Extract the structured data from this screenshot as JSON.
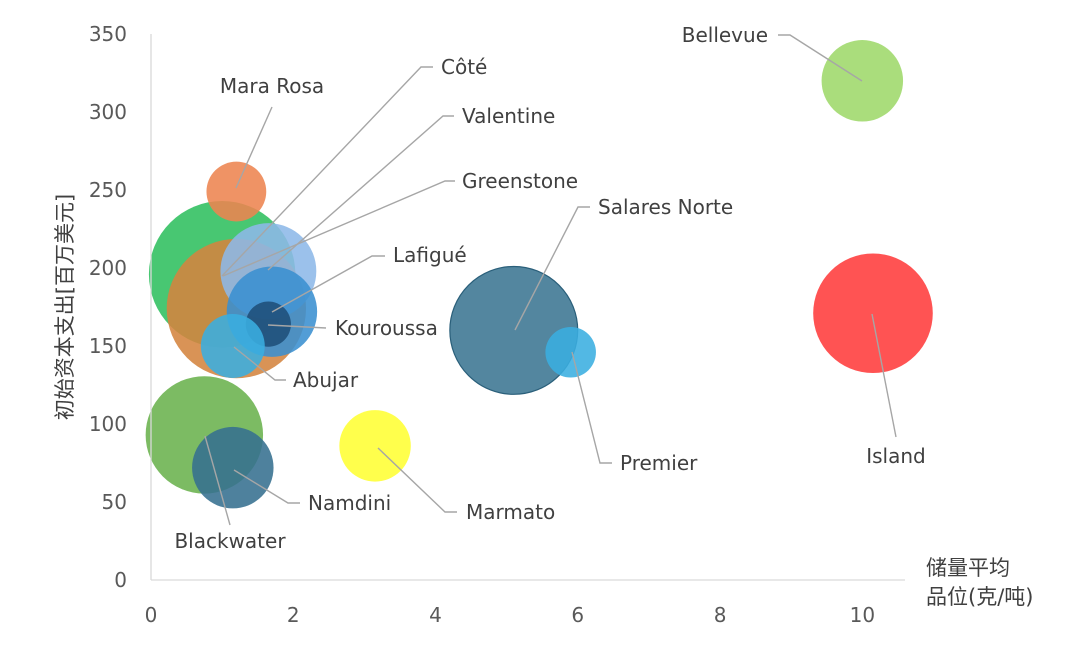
{
  "chart_data": {
    "type": "bubble",
    "xlabel_lines": [
      "储量平均",
      "品位(克/吨)"
    ],
    "ylabel": "初始资本支出[百万美元]",
    "xlim": [
      0,
      10.6
    ],
    "ylim": [
      0,
      350
    ],
    "xticks": [
      "0",
      "2",
      "4",
      "6",
      "8",
      "10"
    ],
    "yticks": [
      "0",
      "50",
      "100",
      "150",
      "200",
      "250",
      "300",
      "350"
    ],
    "series": [
      {
        "name": "Greenstone",
        "x": 1.0,
        "y": 196,
        "size": 42,
        "color": "#2fbf5f"
      },
      {
        "name": "Côté",
        "x": 1.2,
        "y": 174,
        "size": 38,
        "color": "#d4843f"
      },
      {
        "name": "Valentine",
        "x": 1.65,
        "y": 198,
        "size": 18,
        "color": "#8db8e8"
      },
      {
        "name": "Lafigué",
        "x": 1.7,
        "y": 172,
        "size": 16,
        "color": "#3a8fd0"
      },
      {
        "name": "Kouroussa",
        "x": 1.65,
        "y": 164,
        "size": 4,
        "color": "#1f4e79"
      },
      {
        "name": "Abujar",
        "x": 1.15,
        "y": 150,
        "size": 8,
        "color": "#3aaee0"
      },
      {
        "name": "Mara Rosa",
        "x": 1.2,
        "y": 249,
        "size": 7,
        "color": "#ed8450"
      },
      {
        "name": "Blackwater",
        "x": 0.75,
        "y": 93,
        "size": 27,
        "color": "#6ab24d"
      },
      {
        "name": "Namdini",
        "x": 1.15,
        "y": 72,
        "size": 13,
        "color": "#35708f"
      },
      {
        "name": "Marmato",
        "x": 3.15,
        "y": 86,
        "size": 10,
        "color": "#ffff33"
      },
      {
        "name": "Salares Norte",
        "x": 5.1,
        "y": 160,
        "size": 32,
        "color": "#3b7592"
      },
      {
        "name": "Premier",
        "x": 5.9,
        "y": 146,
        "size": 5,
        "color": "#3aaee0"
      },
      {
        "name": "Bellevue",
        "x": 10.0,
        "y": 320,
        "size": 13,
        "color": "#9ed86a"
      },
      {
        "name": "Island",
        "x": 10.15,
        "y": 171,
        "size": 28,
        "color": "#ff3b3b"
      }
    ]
  }
}
